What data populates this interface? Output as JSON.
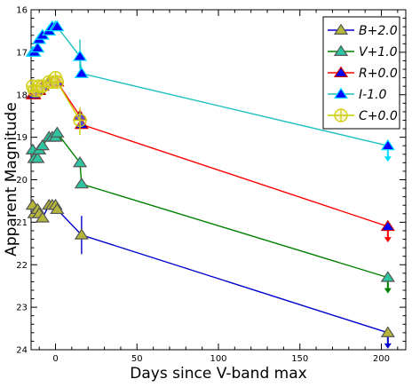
{
  "chart_data": {
    "type": "line",
    "title": "",
    "xlabel": "Days since V-band max",
    "ylabel": "Apparent Magnitude",
    "xlim": [
      -15,
      215
    ],
    "ylim": [
      24,
      16
    ],
    "y_inverted": true,
    "xticks": [
      0,
      50,
      100,
      150,
      200
    ],
    "yticks": [
      16,
      17,
      18,
      19,
      20,
      21,
      22,
      23,
      24
    ],
    "grid": false,
    "legend_position": "top-right",
    "series": [
      {
        "name": "B+2.0",
        "marker": "triangle",
        "line_color": "#0000cc",
        "marker_fill": "#b5b53a",
        "marker_edge": "#555555",
        "points": [
          {
            "x": -14,
            "y": 20.6
          },
          {
            "x": -13,
            "y": 20.8
          },
          {
            "x": -11,
            "y": 20.7
          },
          {
            "x": -10,
            "y": 20.8
          },
          {
            "x": -8,
            "y": 20.9
          },
          {
            "x": -4,
            "y": 20.6
          },
          {
            "x": -2,
            "y": 20.6
          },
          {
            "x": 0,
            "y": 20.6
          },
          {
            "x": 1,
            "y": 20.7
          },
          {
            "x": 16,
            "y": 21.3
          },
          {
            "x": 204,
            "y": 23.6
          }
        ],
        "errorbars": [
          {
            "x": 16,
            "low": 20.85,
            "high": 21.75
          }
        ],
        "upper_limit_x": 204
      },
      {
        "name": "V+1.0",
        "marker": "triangle",
        "line_color": "#008000",
        "marker_fill": "#2ec4a0",
        "marker_edge": "#555555",
        "points": [
          {
            "x": -14,
            "y": 19.3
          },
          {
            "x": -13,
            "y": 19.5
          },
          {
            "x": -11,
            "y": 19.5
          },
          {
            "x": -10,
            "y": 19.3
          },
          {
            "x": -8,
            "y": 19.2
          },
          {
            "x": -4,
            "y": 19.0
          },
          {
            "x": -2,
            "y": 19.0
          },
          {
            "x": 0,
            "y": 19.0
          },
          {
            "x": 1,
            "y": 18.9
          },
          {
            "x": 15,
            "y": 19.6
          },
          {
            "x": 16,
            "y": 20.1
          },
          {
            "x": 204,
            "y": 22.3
          }
        ],
        "errorbars": [],
        "upper_limit_x": 204
      },
      {
        "name": "R+0.0",
        "marker": "triangle",
        "line_color": "#ff0000",
        "marker_fill": "#0000ff",
        "marker_edge": "#cc0000",
        "points": [
          {
            "x": -14,
            "y": 18.0
          },
          {
            "x": -13,
            "y": 18.0
          },
          {
            "x": -11,
            "y": 17.9
          },
          {
            "x": -10,
            "y": 17.9
          },
          {
            "x": -8,
            "y": 17.8
          },
          {
            "x": -4,
            "y": 17.7
          },
          {
            "x": -2,
            "y": 17.7
          },
          {
            "x": 0,
            "y": 17.7
          },
          {
            "x": 1,
            "y": 17.7
          },
          {
            "x": 15,
            "y": 18.5
          },
          {
            "x": 16,
            "y": 18.7
          },
          {
            "x": 204,
            "y": 21.1
          }
        ],
        "errorbars": [],
        "upper_limit_x": 204
      },
      {
        "name": "I-1.0",
        "marker": "triangle",
        "line_color": "#1ec0c0",
        "marker_fill": "#0000ff",
        "marker_edge": "#00ddff",
        "points": [
          {
            "x": -14,
            "y": 17.0
          },
          {
            "x": -13,
            "y": 17.0
          },
          {
            "x": -11,
            "y": 16.9
          },
          {
            "x": -10,
            "y": 16.7
          },
          {
            "x": -8,
            "y": 16.6
          },
          {
            "x": -4,
            "y": 16.5
          },
          {
            "x": -2,
            "y": 16.4
          },
          {
            "x": 0,
            "y": 16.4
          },
          {
            "x": 1,
            "y": 16.4
          },
          {
            "x": 15,
            "y": 17.1
          },
          {
            "x": 16,
            "y": 17.5
          },
          {
            "x": 204,
            "y": 19.2
          }
        ],
        "errorbars": [
          {
            "x": 15,
            "low": 16.7,
            "high": 17.4
          }
        ],
        "upper_limit_x": 204
      },
      {
        "name": "C+0.0",
        "marker": "circle-plus",
        "line_color": "#cccc00",
        "marker_fill": "#f0e68c",
        "marker_edge": "#cccc00",
        "points": [
          {
            "x": -14,
            "y": 17.8
          },
          {
            "x": -13,
            "y": 17.9
          },
          {
            "x": -11,
            "y": 17.9
          },
          {
            "x": -10,
            "y": 17.8
          },
          {
            "x": -8,
            "y": 17.8
          },
          {
            "x": -4,
            "y": 17.7
          },
          {
            "x": -2,
            "y": 17.7
          },
          {
            "x": 0,
            "y": 17.6
          },
          {
            "x": 1,
            "y": 17.7
          },
          {
            "x": 15,
            "y": 18.6
          }
        ],
        "errorbars": [
          {
            "x": 15,
            "low": 18.3,
            "high": 18.95
          }
        ],
        "upper_limit_x": null
      }
    ]
  }
}
